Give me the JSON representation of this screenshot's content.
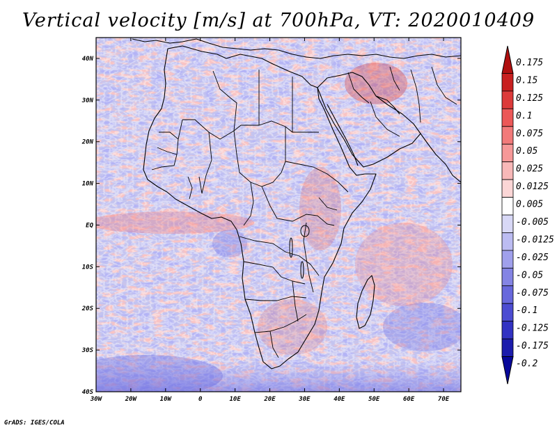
{
  "title": "Vertical velocity [m/s] at 700hPa, VT: 2020010409",
  "footer": "GrADS: IGES/COLA",
  "chart_data": {
    "type": "heatmap",
    "title": "Vertical velocity [m/s] at 700hPa, VT: 2020010409",
    "variable": "Vertical velocity",
    "units": "m/s",
    "level": "700hPa",
    "valid_time": "2020010409",
    "lon_range": [
      -30,
      75
    ],
    "lat_range": [
      -40,
      45
    ],
    "x_ticks": [
      "30W",
      "20W",
      "10W",
      "0",
      "10E",
      "20E",
      "30E",
      "40E",
      "50E",
      "60E",
      "70E"
    ],
    "x_tick_values": [
      -30,
      -20,
      -10,
      0,
      10,
      20,
      30,
      40,
      50,
      60,
      70
    ],
    "y_ticks": [
      "40N",
      "30N",
      "20N",
      "10N",
      "EQ",
      "10S",
      "20S",
      "30S",
      "40S"
    ],
    "y_tick_values": [
      40,
      30,
      20,
      10,
      0,
      -10,
      -20,
      -30,
      -40
    ],
    "colorbar_levels": [
      "0.175",
      "0.15",
      "0.125",
      "0.1",
      "0.075",
      "0.05",
      "0.025",
      "0.0125",
      "0.005",
      "-0.005",
      "-0.0125",
      "-0.025",
      "-0.05",
      "-0.075",
      "-0.1",
      "-0.125",
      "-0.175",
      "-0.2"
    ],
    "colorbar_colors": [
      "#b01010",
      "#c82020",
      "#dc3a3a",
      "#ec5858",
      "#f27a7a",
      "#f69898",
      "#f8b8b8",
      "#fbd6d6",
      "#ffffff",
      "#d8d8f6",
      "#bcbcf2",
      "#a0a0ec",
      "#8484e4",
      "#6868dc",
      "#4c4cd2",
      "#3232c2",
      "#1c1cac",
      "#08089a"
    ]
  }
}
